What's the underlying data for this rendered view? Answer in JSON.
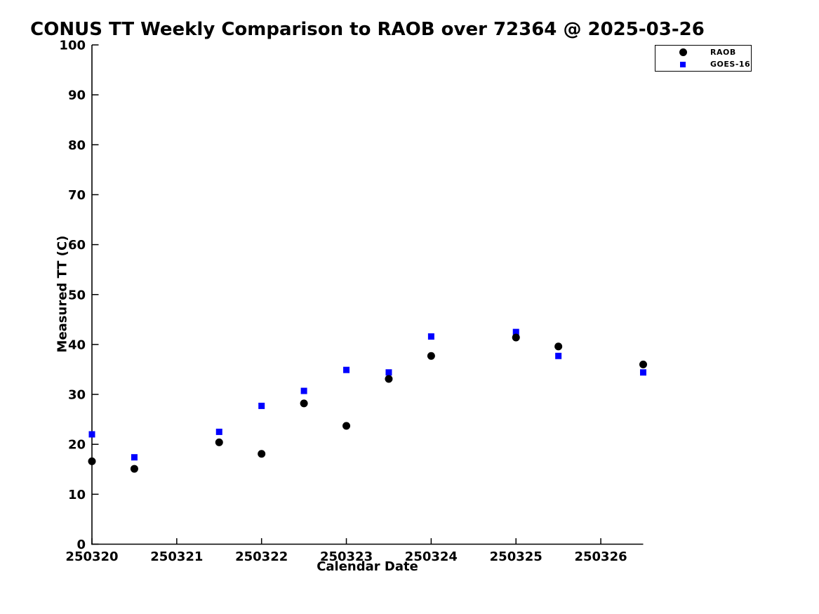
{
  "figure": {
    "title": "CONUS TT Weekly Comparison to RAOB over 72364 @ 2025-03-26",
    "xlabel": "Calendar Date",
    "ylabel": "Measured TT (C)"
  },
  "legend": {
    "items": [
      {
        "label": "RAOB",
        "marker": "circle",
        "color": "#000000"
      },
      {
        "label": "GOES-16",
        "marker": "square",
        "color": "#0000ff"
      }
    ]
  },
  "colors": {
    "raob": "#000000",
    "goes16": "#0000ff",
    "axis": "#000000",
    "background": "#ffffff"
  },
  "chart_data": {
    "type": "scatter",
    "title": "CONUS TT Weekly Comparison to RAOB over 72364 @ 2025-03-26",
    "xlabel": "Calendar Date",
    "ylabel": "Measured TT (C)",
    "xlim": [
      250320,
      250326.5
    ],
    "ylim": [
      0,
      100
    ],
    "x_ticks": [
      250320,
      250321,
      250322,
      250323,
      250324,
      250325,
      250326
    ],
    "y_ticks": [
      0,
      10,
      20,
      30,
      40,
      50,
      60,
      70,
      80,
      90,
      100
    ],
    "grid": false,
    "legend_position": "outside-top-right",
    "x": [
      250320.0,
      250320.5,
      250321.5,
      250322.0,
      250322.5,
      250323.0,
      250323.5,
      250324.0,
      250325.0,
      250325.5,
      250326.5
    ],
    "series": [
      {
        "name": "GOES-16",
        "marker": "square",
        "color": "#0000ff",
        "values": [
          22.0,
          17.4,
          22.5,
          27.7,
          30.7,
          34.9,
          34.4,
          41.6,
          42.5,
          37.7,
          34.4
        ]
      },
      {
        "name": "RAOB",
        "marker": "circle",
        "color": "#000000",
        "values": [
          16.6,
          15.1,
          20.4,
          18.1,
          28.2,
          23.7,
          33.1,
          37.7,
          41.4,
          39.6,
          36.0
        ]
      }
    ]
  }
}
